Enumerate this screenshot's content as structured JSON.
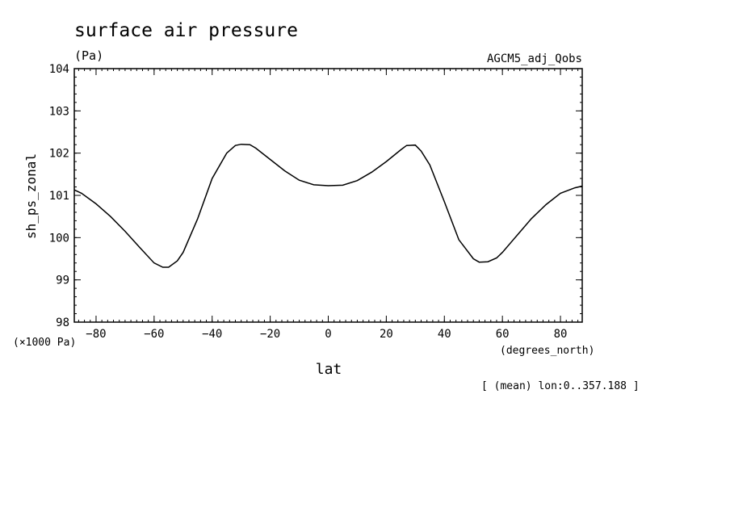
{
  "chart_data": {
    "type": "line",
    "title": "surface air pressure",
    "units_label": "(Pa)",
    "experiment": "AGCM5_adj_Qobs",
    "ylabel": "sh_ps_zonal",
    "xlabel": "lat",
    "x_units": "(degrees_north)",
    "y_scale_note": "(×1000 Pa)",
    "footer_note": "[ (mean) lon:0..357.188 ]",
    "xlim": [
      -87.5,
      87.5
    ],
    "ylim": [
      98,
      104
    ],
    "x_ticks": [
      -80,
      -60,
      -40,
      -20,
      0,
      20,
      40,
      60,
      80
    ],
    "y_ticks": [
      98,
      99,
      100,
      101,
      102,
      103,
      104
    ],
    "series": [
      {
        "x": [
          -87.5,
          -85,
          -80,
          -75,
          -70,
          -65,
          -60,
          -57,
          -55,
          -52,
          -50,
          -45,
          -40,
          -35,
          -32,
          -30,
          -27,
          -25,
          -20,
          -15,
          -10,
          -5,
          0,
          5,
          10,
          15,
          20,
          25,
          27,
          30,
          32,
          35,
          40,
          45,
          50,
          52,
          55,
          58,
          60,
          65,
          70,
          75,
          80,
          85,
          87.5
        ],
        "y": [
          101.13,
          101.05,
          100.8,
          100.5,
          100.15,
          99.77,
          99.4,
          99.3,
          99.3,
          99.45,
          99.65,
          100.45,
          101.4,
          102.0,
          102.18,
          102.21,
          102.2,
          102.12,
          101.85,
          101.58,
          101.36,
          101.25,
          101.23,
          101.24,
          101.35,
          101.55,
          101.8,
          102.08,
          102.18,
          102.19,
          102.05,
          101.72,
          100.85,
          99.95,
          99.5,
          99.42,
          99.43,
          99.52,
          99.65,
          100.05,
          100.45,
          100.78,
          101.05,
          101.18,
          101.22
        ]
      }
    ]
  }
}
